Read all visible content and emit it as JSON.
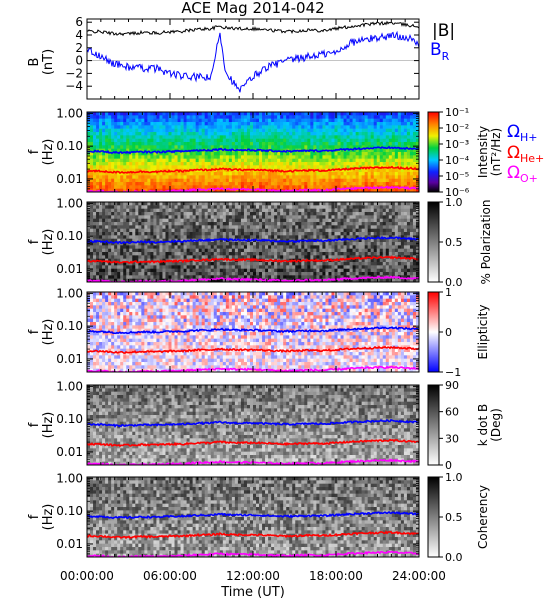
{
  "title": "ACE Mag 2014-042",
  "xaxis": {
    "label": "Time (UT)",
    "ticks": [
      "00:00:00",
      "06:00:00",
      "12:00:00",
      "18:00:00",
      "24:00:00"
    ],
    "range_hours": [
      0,
      24
    ]
  },
  "legend": {
    "mag_total": "|B|",
    "mag_radial": "B",
    "mag_radial_sub": "R",
    "omega": "Ω",
    "omega_h": "H+",
    "omega_he": "He+",
    "omega_o": "O+",
    "colors": {
      "total": "#000000",
      "radial": "#0000ff",
      "h": "#0000ff",
      "he": "#ff0000",
      "o": "#ff00ff"
    }
  },
  "chart_data": {
    "type": "line",
    "panels": [
      {
        "id": "mag",
        "ylabel": "B",
        "yunits": "(nT)",
        "ylim": [
          -6,
          6.5
        ],
        "yticks": [
          "6",
          "4",
          "2",
          "0",
          "−2",
          "−4"
        ],
        "x_hours": [
          0,
          1,
          2,
          3,
          4,
          5,
          6,
          7,
          8,
          9,
          9.6,
          10,
          11,
          12,
          13,
          14,
          15,
          16,
          17,
          18,
          19,
          20,
          21,
          22,
          23,
          24
        ],
        "series": [
          {
            "name": "|B|",
            "values": [
              4.6,
              4.5,
              4.2,
              4.2,
              4.4,
              4.3,
              4.5,
              4.6,
              4.9,
              5.0,
              5.4,
              5.1,
              5.0,
              5.0,
              4.8,
              4.6,
              4.6,
              4.8,
              4.7,
              5.0,
              5.3,
              5.6,
              5.8,
              5.9,
              5.6,
              5.3
            ]
          },
          {
            "name": "B_R",
            "values": [
              1.8,
              0.5,
              -0.5,
              -1.0,
              -1.2,
              -1.2,
              -2.0,
              -2.5,
              -2.6,
              -2.7,
              4.6,
              -1.5,
              -4.8,
              -2.5,
              -1.0,
              -0.3,
              0.2,
              0.6,
              1.0,
              1.2,
              2.8,
              3.2,
              3.6,
              3.9,
              3.8,
              2.5
            ]
          }
        ]
      },
      {
        "id": "intensity",
        "ylabel": "f",
        "yunits": "(Hz)",
        "ylim": [
          0.004,
          1.1
        ],
        "yticks": [
          "1.00",
          "0.10",
          "0.01"
        ],
        "cbar_label_1": "Intensity",
        "cbar_label_2": "(nT²/Hz)",
        "cbar_ticks": [
          "10⁻¹",
          "10⁻²",
          "10⁻³",
          "10⁻⁴",
          "10⁻⁵",
          "10⁻⁶"
        ],
        "cbar_range": [
          -6.5,
          -0.5
        ]
      },
      {
        "id": "polarization",
        "ylabel": "f",
        "yunits": "(Hz)",
        "ylim": [
          0.004,
          1.1
        ],
        "yticks": [
          "1.00",
          "0.10",
          "0.01"
        ],
        "cbar_label_1": "% Polarization",
        "cbar_ticks": [
          "1.0",
          "0.5",
          "0.0"
        ],
        "cbar_range": [
          0,
          1
        ]
      },
      {
        "id": "ellipticity",
        "ylabel": "f",
        "yunits": "(Hz)",
        "ylim": [
          0.004,
          1.1
        ],
        "yticks": [
          "1.00",
          "0.10",
          "0.01"
        ],
        "cbar_label_1": "Ellipticity",
        "cbar_ticks": [
          "1",
          "0",
          "−1"
        ],
        "cbar_range": [
          -1,
          1
        ]
      },
      {
        "id": "kdotb",
        "ylabel": "f",
        "yunits": "(Hz)",
        "ylim": [
          0.004,
          1.1
        ],
        "yticks": [
          "1.00",
          "0.10",
          "0.01"
        ],
        "cbar_label_1": "k dot B",
        "cbar_label_2": "(Deg)",
        "cbar_ticks": [
          "90",
          "60",
          "30",
          "0"
        ],
        "cbar_range": [
          0,
          90
        ]
      },
      {
        "id": "coherency",
        "ylabel": "f",
        "yunits": "(Hz)",
        "ylim": [
          0.004,
          1.1
        ],
        "yticks": [
          "1.00",
          "0.10",
          "0.01"
        ],
        "cbar_label_1": "Coherency",
        "cbar_ticks": [
          "1.0",
          "0.5",
          "0.0"
        ],
        "cbar_range": [
          0,
          1
        ]
      }
    ],
    "gyrofrequency_lines": {
      "x_hours": [
        0,
        1,
        2,
        3,
        4,
        5,
        6,
        7,
        8,
        9,
        9.6,
        10,
        11,
        12,
        13,
        14,
        15,
        16,
        17,
        18,
        19,
        20,
        21,
        22,
        23,
        24
      ],
      "H+": [
        0.07,
        0.069,
        0.064,
        0.064,
        0.067,
        0.066,
        0.069,
        0.07,
        0.075,
        0.076,
        0.082,
        0.078,
        0.076,
        0.076,
        0.073,
        0.07,
        0.07,
        0.073,
        0.072,
        0.076,
        0.081,
        0.085,
        0.088,
        0.09,
        0.085,
        0.081
      ],
      "He+": [
        0.0175,
        0.0173,
        0.016,
        0.016,
        0.0168,
        0.0165,
        0.0173,
        0.0175,
        0.0188,
        0.019,
        0.0205,
        0.0195,
        0.019,
        0.019,
        0.0183,
        0.0175,
        0.0175,
        0.0183,
        0.018,
        0.019,
        0.0203,
        0.0213,
        0.022,
        0.0225,
        0.0213,
        0.0203
      ],
      "O+": [
        0.0044,
        0.0043,
        0.004,
        0.004,
        0.0042,
        0.0041,
        0.0043,
        0.0044,
        0.0047,
        0.0048,
        0.0051,
        0.0049,
        0.0048,
        0.0048,
        0.0046,
        0.0044,
        0.0044,
        0.0046,
        0.0045,
        0.0048,
        0.0051,
        0.0053,
        0.0055,
        0.0056,
        0.0053,
        0.0051
      ]
    }
  }
}
